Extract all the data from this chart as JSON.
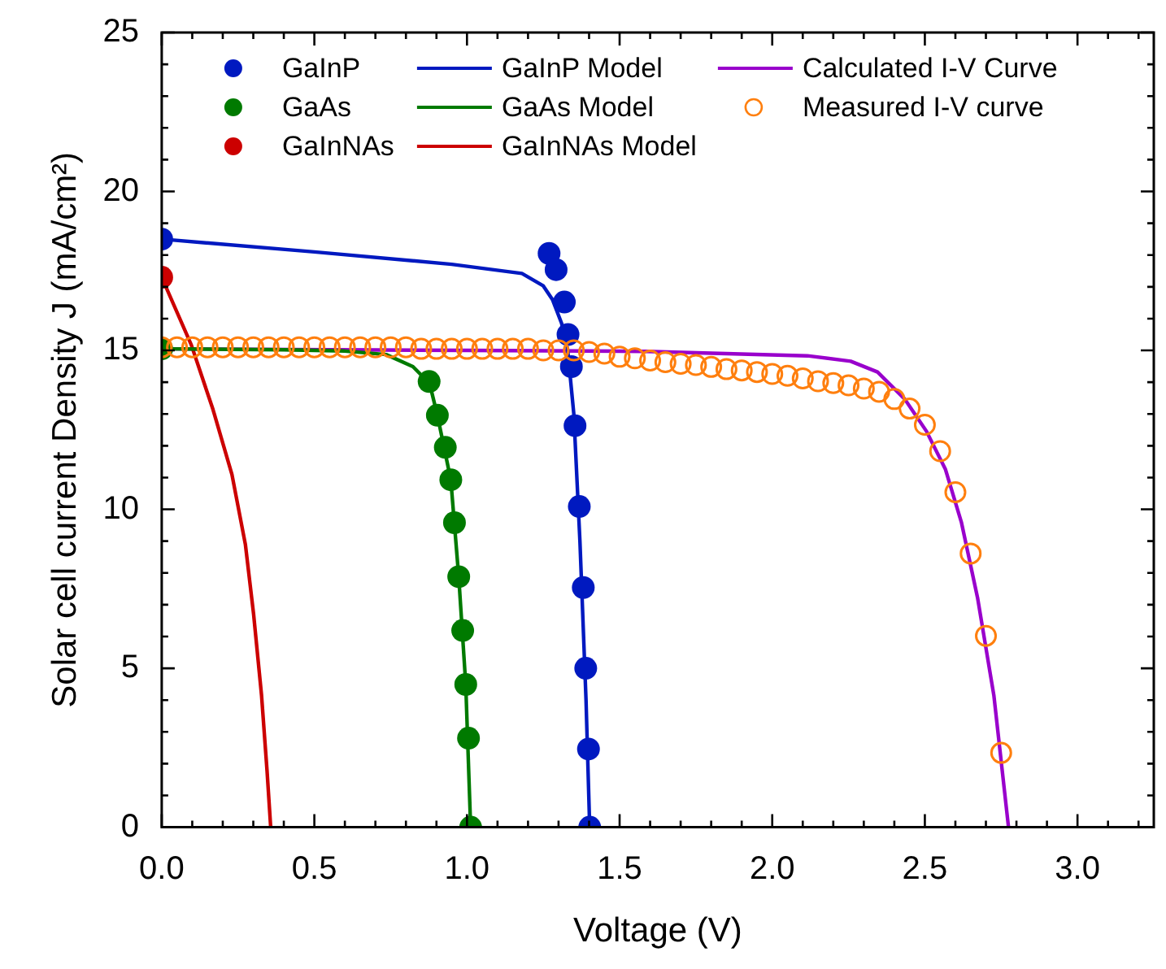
{
  "chart_data": {
    "type": "scatter",
    "xlabel": "Voltage (V)",
    "ylabel": "Solar cell current Density J (mA/cm²)",
    "xlim": [
      0,
      3.25
    ],
    "ylim": [
      0,
      25
    ],
    "xticks": [
      {
        "value": 0,
        "label": "0.0"
      },
      {
        "value": 0.1,
        "label": null
      },
      {
        "value": 0.2,
        "label": null
      },
      {
        "value": 0.3,
        "label": null
      },
      {
        "value": 0.4,
        "label": null
      },
      {
        "value": 0.5,
        "label": "0.5"
      },
      {
        "value": 0.6,
        "label": null
      },
      {
        "value": 0.7,
        "label": null
      },
      {
        "value": 0.8,
        "label": null
      },
      {
        "value": 0.9,
        "label": null
      },
      {
        "value": 1,
        "label": "1.0"
      },
      {
        "value": 1.1,
        "label": null
      },
      {
        "value": 1.2,
        "label": null
      },
      {
        "value": 1.3,
        "label": null
      },
      {
        "value": 1.4,
        "label": null
      },
      {
        "value": 1.5,
        "label": "1.5"
      },
      {
        "value": 1.6,
        "label": null
      },
      {
        "value": 1.7,
        "label": null
      },
      {
        "value": 1.8,
        "label": null
      },
      {
        "value": 1.9,
        "label": null
      },
      {
        "value": 2,
        "label": "2.0"
      },
      {
        "value": 2.1,
        "label": null
      },
      {
        "value": 2.2,
        "label": null
      },
      {
        "value": 2.3,
        "label": null
      },
      {
        "value": 2.4,
        "label": null
      },
      {
        "value": 2.5,
        "label": "2.5"
      },
      {
        "value": 2.6,
        "label": null
      },
      {
        "value": 2.7,
        "label": null
      },
      {
        "value": 2.8,
        "label": null
      },
      {
        "value": 2.9,
        "label": null
      },
      {
        "value": 3,
        "label": "3.0"
      },
      {
        "value": 3.1,
        "label": null
      },
      {
        "value": 3.2,
        "label": null
      }
    ],
    "yticks": [
      0,
      {
        "value": 1,
        "label": null
      },
      {
        "value": 2,
        "label": null
      },
      {
        "value": 3,
        "label": null
      },
      {
        "value": 4,
        "label": null
      },
      5,
      {
        "value": 6,
        "label": null
      },
      {
        "value": 7,
        "label": null
      },
      {
        "value": 8,
        "label": null
      },
      {
        "value": 9,
        "label": null
      },
      10,
      {
        "value": 11,
        "label": null
      },
      {
        "value": 12,
        "label": null
      },
      {
        "value": 13,
        "label": null
      },
      {
        "value": 14,
        "label": null
      },
      15,
      {
        "value": 16,
        "label": null
      },
      {
        "value": 17,
        "label": null
      },
      {
        "value": 18,
        "label": null
      },
      {
        "value": 19,
        "label": null
      },
      20,
      {
        "value": 21,
        "label": null
      },
      {
        "value": 22,
        "label": null
      },
      {
        "value": 23,
        "label": null
      },
      {
        "value": 24,
        "label": null
      },
      25
    ],
    "grid": false,
    "legend": "top",
    "series": [
      {
        "name": "GaInP",
        "marker": "circle",
        "color": "#0019c0",
        "x": [
          0,
          1.269,
          1.292,
          1.319,
          1.331,
          1.342,
          1.354,
          1.368,
          1.381,
          1.389,
          1.398,
          1.402
        ],
        "values": [
          18.5,
          18.05,
          17.54,
          16.52,
          15.5,
          14.49,
          12.63,
          10.09,
          7.54,
          5.0,
          2.46,
          0
        ]
      },
      {
        "name": "GaAs",
        "marker": "circle",
        "color": "#007a00",
        "x": [
          0,
          0.876,
          0.903,
          0.929,
          0.947,
          0.959,
          0.973,
          0.986,
          0.996,
          1.005,
          1.012
        ],
        "values": [
          15.05,
          14.02,
          12.96,
          11.95,
          10.93,
          9.58,
          7.88,
          6.19,
          4.49,
          2.8,
          0
        ]
      },
      {
        "name": "GaInNAs",
        "marker": "circle",
        "color": "#cc0000",
        "x": [
          0
        ],
        "values": [
          17.3
        ]
      },
      {
        "name": "GaInP Model",
        "type": "line",
        "color": "#0019c0",
        "x": [
          0,
          0.5,
          0.95,
          1.18,
          1.25,
          1.28,
          1.31,
          1.33,
          1.35,
          1.37,
          1.39,
          1.402
        ],
        "values": [
          18.5,
          18.1,
          17.71,
          17.42,
          17.03,
          16.6,
          15.85,
          15.0,
          13.0,
          9.0,
          4.0,
          0
        ]
      },
      {
        "name": "GaAs Model",
        "type": "line",
        "color": "#007a00",
        "x": [
          0,
          0.4,
          0.6,
          0.735,
          0.823,
          0.858,
          0.876,
          0.903,
          0.947,
          0.973,
          0.996,
          1.012
        ],
        "values": [
          15.05,
          15.02,
          14.98,
          14.87,
          14.49,
          14.15,
          14.02,
          12.96,
          10.93,
          7.88,
          4.49,
          0
        ]
      },
      {
        "name": "GaInNAs Model",
        "type": "line",
        "color": "#cc0000",
        "x": [
          0,
          0.097,
          0.168,
          0.23,
          0.274,
          0.301,
          0.327,
          0.345,
          0.357
        ],
        "values": [
          17.3,
          15.17,
          13.14,
          11.1,
          8.9,
          6.7,
          4.15,
          1.78,
          0
        ]
      },
      {
        "name": "Calculated I-V Curve",
        "type": "line",
        "color": "#9900cc",
        "x": [
          0,
          1.0,
          1.584,
          2.115,
          2.257,
          2.345,
          2.434,
          2.505,
          2.567,
          2.62,
          2.673,
          2.726,
          2.774
        ],
        "values": [
          15.05,
          15.0,
          14.97,
          14.83,
          14.66,
          14.32,
          13.47,
          12.46,
          11.27,
          9.58,
          7.2,
          4.15,
          0
        ]
      },
      {
        "name": "Measured I-V curve",
        "marker": "circle",
        "color": "#ff7f0e",
        "x": [
          0,
          0.05,
          0.1,
          0.15,
          0.2,
          0.25,
          0.3,
          0.35,
          0.4,
          0.45,
          0.5,
          0.55,
          0.6,
          0.65,
          0.7,
          0.75,
          0.8,
          0.85,
          0.9,
          0.95,
          1.0,
          1.05,
          1.1,
          1.15,
          1.2,
          1.25,
          1.3,
          1.35,
          1.4,
          1.45,
          1.5,
          1.55,
          1.6,
          1.65,
          1.7,
          1.75,
          1.8,
          1.85,
          1.9,
          1.95,
          2.0,
          2.05,
          2.1,
          2.15,
          2.2,
          2.25,
          2.3,
          2.35,
          2.4,
          2.45,
          2.5,
          2.55,
          2.6,
          2.65,
          2.7,
          2.75
        ],
        "values": [
          15.1,
          15.1,
          15.1,
          15.1,
          15.1,
          15.1,
          15.1,
          15.1,
          15.1,
          15.1,
          15.1,
          15.1,
          15.1,
          15.1,
          15.1,
          15.1,
          15.1,
          15.05,
          15.05,
          15.05,
          15.05,
          15.05,
          15.05,
          15.05,
          15.05,
          15.0,
          15.0,
          15.0,
          14.95,
          14.9,
          14.8,
          14.75,
          14.68,
          14.63,
          14.58,
          14.54,
          14.48,
          14.41,
          14.37,
          14.32,
          14.26,
          14.2,
          14.12,
          14.03,
          13.97,
          13.9,
          13.8,
          13.7,
          13.47,
          13.17,
          12.66,
          11.83,
          10.54,
          8.61,
          6.02,
          2.34
        ]
      }
    ]
  }
}
